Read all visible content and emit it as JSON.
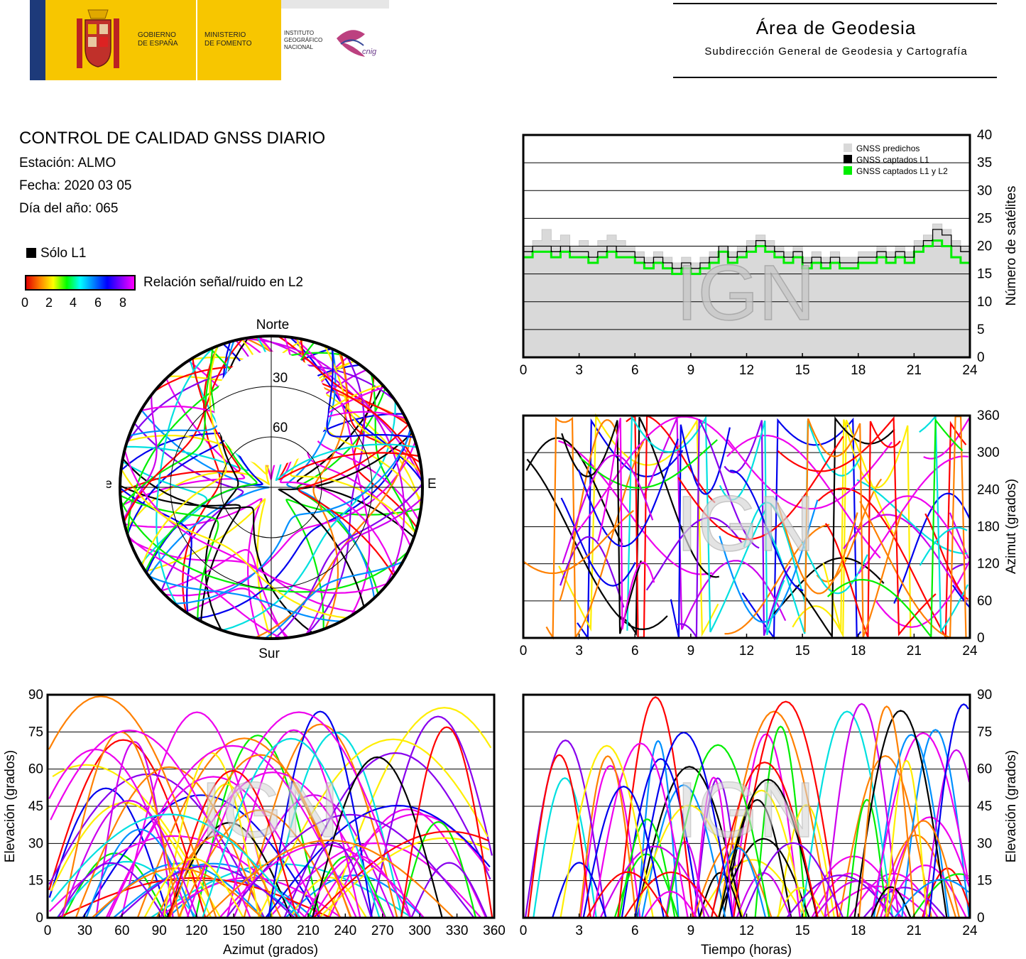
{
  "header": {
    "org_lines": [
      "GOBIERNO",
      "DE ESPAÑA"
    ],
    "ministry_lines": [
      "MINISTERIO",
      "DE FOMENTO"
    ],
    "institute_lines": [
      "INSTITUTO",
      "GEOGRÁFICO",
      "NACIONAL"
    ],
    "cnig": "cnig",
    "area_title": "Área de Geodesia",
    "area_subtitle": "Subdirección General de Geodesia y Cartografía"
  },
  "report": {
    "title": "CONTROL DE CALIDAD GNSS DIARIO",
    "station": "Estación: ALMO",
    "date": "Fecha: 2020 03 05",
    "doy": "Día del año: 065"
  },
  "legend": {
    "l1_only": "Sólo L1",
    "snr_label": "Relación señal/ruido en L2",
    "snr_ticks": [
      "0",
      "2",
      "4",
      "6",
      "8"
    ]
  },
  "watermark": "IGN",
  "chart_data": [
    {
      "id": "satellite-count",
      "type": "line",
      "xlim": [
        0,
        24
      ],
      "ylim": [
        0,
        40
      ],
      "xticks": [
        "0",
        "3",
        "6",
        "9",
        "12",
        "15",
        "18",
        "21",
        "24"
      ],
      "yticks": [
        "0",
        "5",
        "10",
        "15",
        "20",
        "25",
        "30",
        "35",
        "40"
      ],
      "ylabel": "Número de satélites",
      "legend_position": "top-right",
      "series": [
        {
          "name": "GNSS predichos",
          "color": "#d9d9d9",
          "x": [
            0,
            0.5,
            1,
            1.5,
            2,
            2.5,
            3,
            3.5,
            4,
            4.5,
            5,
            5.5,
            6,
            6.5,
            7,
            7.5,
            8,
            8.5,
            9,
            9.5,
            10,
            10.5,
            11,
            11.5,
            12,
            12.5,
            13,
            13.5,
            14,
            14.5,
            15,
            15.5,
            16,
            16.5,
            17,
            17.5,
            18,
            18.5,
            19,
            19.5,
            20,
            20.5,
            21,
            21.5,
            22,
            22.5,
            23,
            23.5,
            24
          ],
          "y": [
            20,
            21,
            23,
            21,
            22,
            20,
            21,
            20,
            21,
            22,
            21,
            20,
            19,
            18,
            19,
            18,
            17,
            18,
            17,
            18,
            19,
            20,
            19,
            20,
            21,
            22,
            21,
            20,
            19,
            20,
            18,
            19,
            18,
            19,
            18,
            18,
            19,
            19,
            20,
            19,
            20,
            19,
            21,
            22,
            24,
            23,
            21,
            20,
            19
          ]
        },
        {
          "name": "GNSS captados L1",
          "color": "#000000",
          "x": [
            0,
            0.5,
            1,
            1.5,
            2,
            2.5,
            3,
            3.5,
            4,
            4.5,
            5,
            5.5,
            6,
            6.5,
            7,
            7.5,
            8,
            8.5,
            9,
            9.5,
            10,
            10.5,
            11,
            11.5,
            12,
            12.5,
            13,
            13.5,
            14,
            14.5,
            15,
            15.5,
            16,
            16.5,
            17,
            17.5,
            18,
            18.5,
            19,
            19.5,
            20,
            20.5,
            21,
            21.5,
            22,
            22.5,
            23,
            23.5,
            24
          ],
          "y": [
            19,
            20,
            20,
            19,
            20,
            19,
            19,
            18,
            19,
            20,
            19,
            19,
            18,
            17,
            18,
            17,
            16,
            17,
            16,
            17,
            18,
            20,
            18,
            19,
            20,
            21,
            20,
            19,
            18,
            19,
            17,
            18,
            17,
            18,
            17,
            17,
            18,
            18,
            19,
            18,
            19,
            18,
            20,
            21,
            23,
            22,
            20,
            19,
            18
          ]
        },
        {
          "name": "GNSS captados L1 y L2",
          "color": "#00ee00",
          "x": [
            0,
            0.5,
            1,
            1.5,
            2,
            2.5,
            3,
            3.5,
            4,
            4.5,
            5,
            5.5,
            6,
            6.5,
            7,
            7.5,
            8,
            8.5,
            9,
            9.5,
            10,
            10.5,
            11,
            11.5,
            12,
            12.5,
            13,
            13.5,
            14,
            14.5,
            15,
            15.5,
            16,
            16.5,
            17,
            17.5,
            18,
            18.5,
            19,
            19.5,
            20,
            20.5,
            21,
            21.5,
            22,
            22.5,
            23,
            23.5,
            24
          ],
          "y": [
            18,
            19,
            19,
            18,
            19,
            18,
            18,
            17,
            18,
            19,
            18,
            18,
            17,
            16,
            17,
            16,
            15,
            16,
            15,
            16,
            17,
            19,
            17,
            18,
            19,
            20,
            19,
            18,
            17,
            18,
            16,
            17,
            16,
            17,
            16,
            16,
            17,
            17,
            18,
            17,
            18,
            17,
            19,
            20,
            21,
            20,
            18,
            17,
            17
          ]
        }
      ]
    },
    {
      "id": "skyplot",
      "type": "scatter",
      "directions": [
        "Norte",
        "Sur",
        "Este",
        "Oeste"
      ],
      "elevation_rings": [
        "30",
        "60"
      ]
    },
    {
      "id": "azimuth-time",
      "type": "scatter",
      "xlim": [
        0,
        24
      ],
      "ylim": [
        0,
        360
      ],
      "xticks": [
        "0",
        "3",
        "6",
        "9",
        "12",
        "15",
        "18",
        "21",
        "24"
      ],
      "yticks": [
        "0",
        "60",
        "120",
        "180",
        "240",
        "300",
        "360"
      ],
      "ylabel": "Azimut (grados)"
    },
    {
      "id": "elevation-azimuth",
      "type": "scatter",
      "xlim": [
        0,
        360
      ],
      "ylim": [
        0,
        90
      ],
      "xticks": [
        "0",
        "30",
        "60",
        "90",
        "120",
        "150",
        "180",
        "210",
        "240",
        "270",
        "300",
        "330",
        "360"
      ],
      "yticks": [
        "0",
        "15",
        "30",
        "45",
        "60",
        "75",
        "90"
      ],
      "xlabel": "Azimut (grados)",
      "ylabel": "Elevación (grados)"
    },
    {
      "id": "elevation-time",
      "type": "scatter",
      "xlim": [
        0,
        24
      ],
      "ylim": [
        0,
        90
      ],
      "xticks": [
        "0",
        "3",
        "6",
        "9",
        "12",
        "15",
        "18",
        "21",
        "24"
      ],
      "yticks": [
        "0",
        "15",
        "30",
        "45",
        "60",
        "75",
        "90"
      ],
      "xlabel": "Tiempo (horas)",
      "ylabel": "Elevación (grados)"
    }
  ]
}
